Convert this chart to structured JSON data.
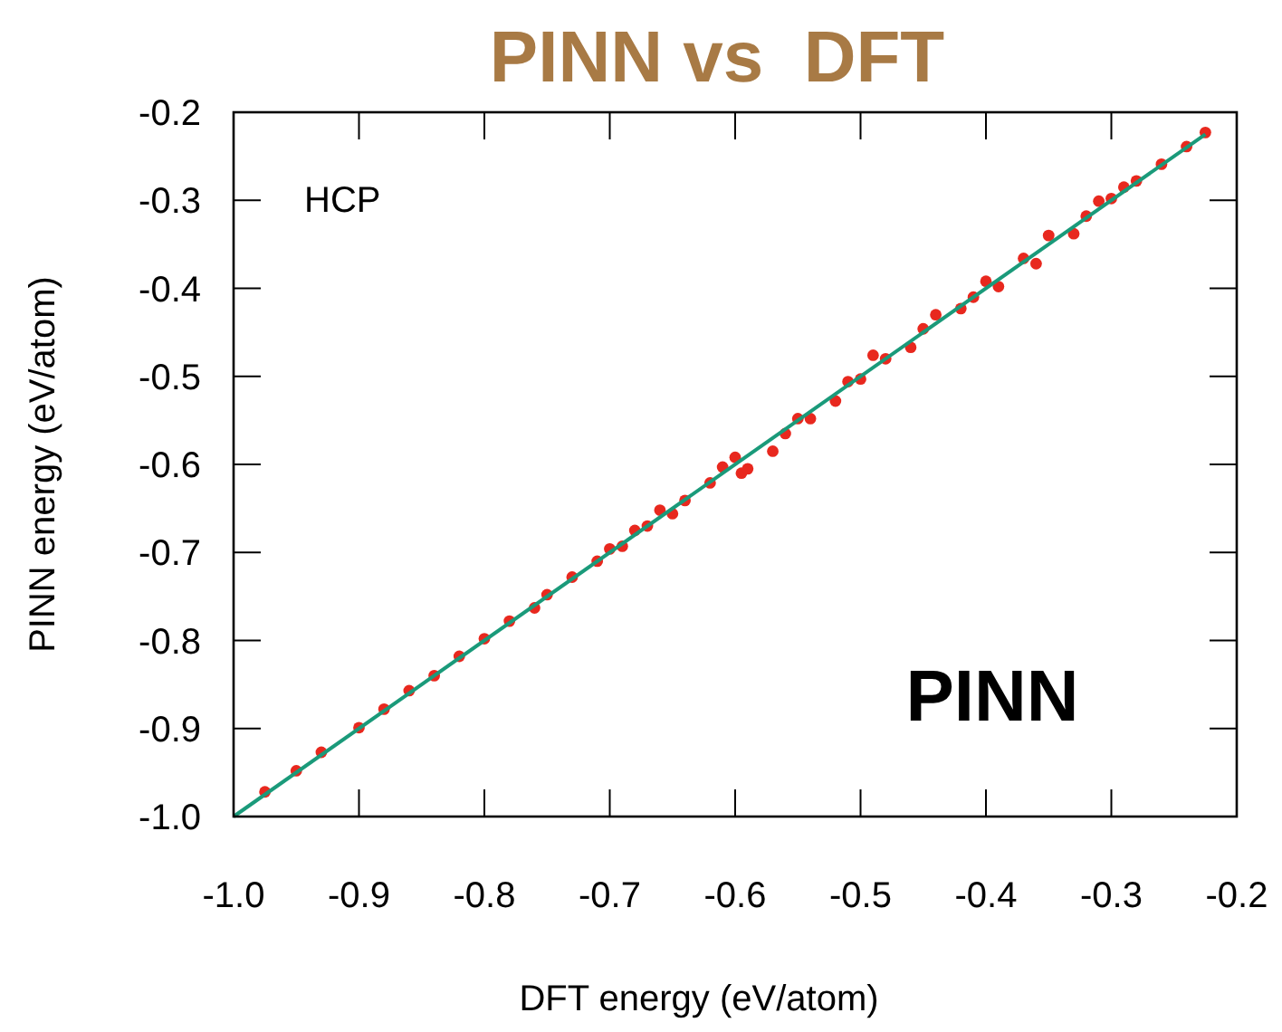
{
  "chart_data": {
    "type": "scatter",
    "title": "PINN vs  DFT",
    "xlabel": "DFT energy (eV/atom)",
    "ylabel": "PINN energy (eV/atom)",
    "annotations": [
      "HCP",
      "PINN"
    ],
    "xlim": [
      -1,
      -0.2
    ],
    "ylim": [
      -1,
      -0.2
    ],
    "xticks": [
      {
        "value": -1,
        "label": "-1.0"
      },
      -0.9,
      -0.8,
      -0.7,
      -0.6,
      -0.5,
      -0.4,
      -0.3,
      -0.2
    ],
    "yticks": [
      {
        "value": -1,
        "label": "-1.0"
      },
      -0.9,
      -0.8,
      -0.7,
      -0.6,
      -0.5,
      -0.4,
      -0.3,
      -0.2
    ],
    "grid": false,
    "series": [
      {
        "color": "#e8281e",
        "marker": "circle",
        "x": [
          -0.975,
          -0.95,
          -0.93,
          -0.9,
          -0.88,
          -0.86,
          -0.84,
          -0.82,
          -0.8,
          -0.78,
          -0.76,
          -0.75,
          -0.73,
          -0.71,
          -0.7,
          -0.69,
          -0.68,
          -0.67,
          -0.66,
          -0.65,
          -0.64,
          -0.62,
          -0.61,
          -0.6,
          -0.595,
          -0.59,
          -0.57,
          -0.56,
          -0.55,
          -0.54,
          -0.52,
          -0.51,
          -0.5,
          -0.49,
          -0.48,
          -0.46,
          -0.45,
          -0.44,
          -0.42,
          -0.41,
          -0.4,
          -0.39,
          -0.37,
          -0.36,
          -0.35,
          -0.33,
          -0.32,
          -0.31,
          -0.3,
          -0.29,
          -0.28,
          -0.26,
          -0.24,
          -0.225
        ],
        "values": [
          -0.972,
          -0.948,
          -0.927,
          -0.899,
          -0.878,
          -0.857,
          -0.84,
          -0.818,
          -0.798,
          -0.778,
          -0.763,
          -0.748,
          -0.728,
          -0.71,
          -0.696,
          -0.693,
          -0.675,
          -0.67,
          -0.652,
          -0.656,
          -0.641,
          -0.621,
          -0.603,
          -0.592,
          -0.61,
          -0.605,
          -0.585,
          -0.565,
          -0.548,
          -0.548,
          -0.528,
          -0.506,
          -0.503,
          -0.476,
          -0.48,
          -0.467,
          -0.446,
          -0.43,
          -0.423,
          -0.41,
          -0.392,
          -0.398,
          -0.366,
          -0.372,
          -0.34,
          -0.338,
          -0.318,
          -0.301,
          -0.298,
          -0.285,
          -0.278,
          -0.259,
          -0.239,
          -0.223
        ]
      },
      {
        "type": "line",
        "color": "#1a9a7a",
        "line_style": "solid",
        "x": [
          -1,
          -0.225
        ],
        "values": [
          -1,
          -0.225
        ]
      }
    ]
  }
}
